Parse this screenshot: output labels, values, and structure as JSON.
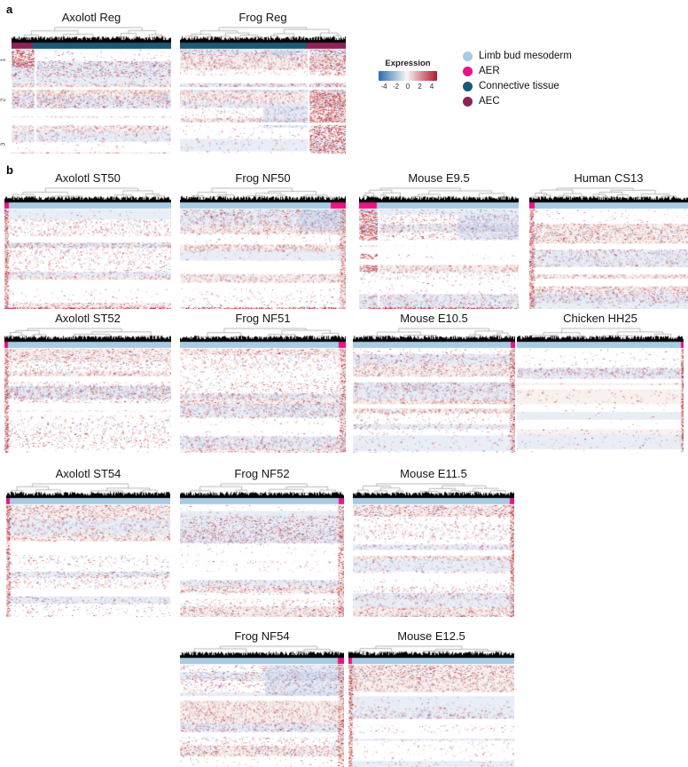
{
  "figure": {
    "panel_a_label": "a",
    "panel_b_label": "b"
  },
  "legend": {
    "colorbar": {
      "title": "Expression",
      "ticks": [
        "-4",
        "-2",
        "0",
        "2",
        "4"
      ],
      "gradient": [
        "#2a6cb0",
        "#f7f6f6",
        "#b2182b"
      ]
    },
    "categories": [
      {
        "id": "limb-bud-mesoderm",
        "label": "Limb bud mesoderm",
        "color": "#a6cbe3"
      },
      {
        "id": "aer",
        "label": "AER",
        "color": "#eb1386"
      },
      {
        "id": "connective-tissue",
        "label": "Connective tissue",
        "color": "#1c5972"
      },
      {
        "id": "aec",
        "label": "AEC",
        "color": "#8e2256"
      }
    ]
  },
  "chart_data": {
    "type": "heatmap",
    "description": "Hierarchically clustered single-cell gene-expression heatmaps (rows = genes, columns = cells) with dendrograms and cell-type column annotation bars. Expression is z-scaled from -4 (blue) to 4 (red).",
    "expression_scale": {
      "min": -4,
      "max": 4,
      "ticks": [
        -4,
        -2,
        0,
        2,
        4
      ]
    },
    "annotation_categories": [
      "Limb bud mesoderm",
      "AER",
      "Connective tissue",
      "AEC"
    ],
    "panels": [
      {
        "panel": "a",
        "row_cluster_labels": [
          "1",
          "2",
          "3"
        ],
        "heatmaps": [
          {
            "id": "axolotl-reg",
            "title": "Axolotl Reg",
            "column_annotation": [
              {
                "category": "AEC",
                "fraction": 0.13
              },
              {
                "category": "Connective tissue",
                "fraction": 0.87
              }
            ]
          },
          {
            "id": "frog-reg",
            "title": "Frog Reg",
            "column_annotation": [
              {
                "category": "Connective tissue",
                "fraction": 0.765
              },
              {
                "category": "AEC",
                "fraction": 0.235
              }
            ]
          }
        ]
      },
      {
        "panel": "b",
        "heatmaps": [
          {
            "id": "axolotl-st50",
            "title": "Axolotl ST50",
            "column_annotation": [
              {
                "category": "AER",
                "fraction": 0.025
              },
              {
                "category": "Limb bud mesoderm",
                "fraction": 0.975
              }
            ]
          },
          {
            "id": "frog-nf50",
            "title": "Frog NF50",
            "column_annotation": [
              {
                "category": "Limb bud mesoderm",
                "fraction": 0.91
              },
              {
                "category": "AER",
                "fraction": 0.09
              }
            ]
          },
          {
            "id": "mouse-e9-5",
            "title": "Mouse E9.5",
            "column_annotation": [
              {
                "category": "AER",
                "fraction": 0.11
              },
              {
                "category": "Limb bud mesoderm",
                "fraction": 0.89
              }
            ]
          },
          {
            "id": "human-cs13",
            "title": "Human CS13",
            "column_annotation": [
              {
                "category": "AER",
                "fraction": 0.035
              },
              {
                "category": "Limb bud mesoderm",
                "fraction": 0.965
              }
            ]
          },
          {
            "id": "axolotl-st52",
            "title": "Axolotl ST52",
            "column_annotation": [
              {
                "category": "AER",
                "fraction": 0.02
              },
              {
                "category": "Limb bud mesoderm",
                "fraction": 0.98
              }
            ]
          },
          {
            "id": "frog-nf51",
            "title": "Frog NF51",
            "column_annotation": [
              {
                "category": "Limb bud mesoderm",
                "fraction": 0.955
              },
              {
                "category": "AER",
                "fraction": 0.045
              }
            ]
          },
          {
            "id": "mouse-e10-5",
            "title": "Mouse E10.5",
            "column_annotation": [
              {
                "category": "Limb bud mesoderm",
                "fraction": 0.97
              },
              {
                "category": "AER",
                "fraction": 0.03
              }
            ]
          },
          {
            "id": "chicken-hh25",
            "title": "Chicken HH25",
            "column_annotation": [
              {
                "category": "Limb bud mesoderm",
                "fraction": 0.985
              },
              {
                "category": "AER",
                "fraction": 0.015
              }
            ]
          },
          {
            "id": "axolotl-st54",
            "title": "Axolotl ST54",
            "column_annotation": [
              {
                "category": "AER",
                "fraction": 0.02
              },
              {
                "category": "Limb bud mesoderm",
                "fraction": 0.98
              }
            ]
          },
          {
            "id": "frog-nf52",
            "title": "Frog NF52",
            "column_annotation": [
              {
                "category": "Limb bud mesoderm",
                "fraction": 0.965
              },
              {
                "category": "AER",
                "fraction": 0.035
              }
            ]
          },
          {
            "id": "mouse-e11-5",
            "title": "Mouse E11.5",
            "column_annotation": [
              {
                "category": "Limb bud mesoderm",
                "fraction": 0.975
              },
              {
                "category": "AER",
                "fraction": 0.025
              }
            ]
          },
          {
            "id": "frog-nf54",
            "title": "Frog NF54",
            "column_annotation": [
              {
                "category": "Limb bud mesoderm",
                "fraction": 0.96
              },
              {
                "category": "AER",
                "fraction": 0.04
              }
            ]
          },
          {
            "id": "mouse-e12-5",
            "title": "Mouse E12.5",
            "column_annotation": [
              {
                "category": "AER",
                "fraction": 0.02
              },
              {
                "category": "Limb bud mesoderm",
                "fraction": 0.98
              }
            ]
          }
        ]
      }
    ]
  }
}
